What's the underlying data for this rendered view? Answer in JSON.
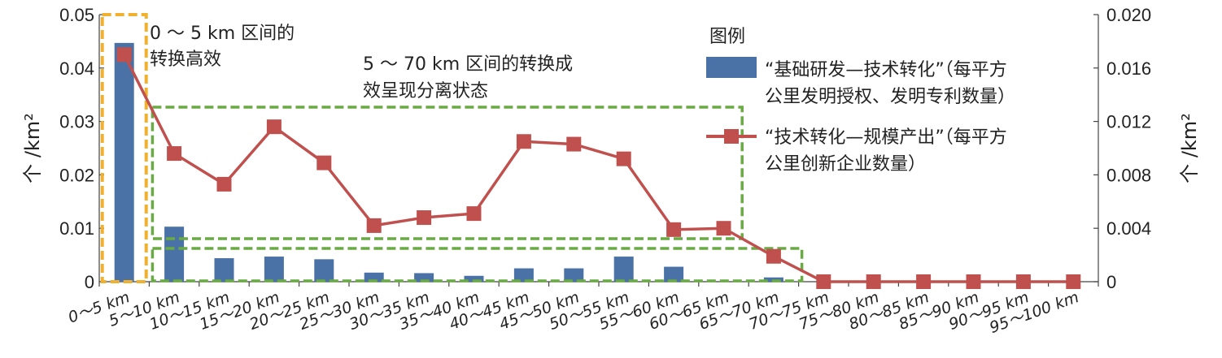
{
  "chart_data": {
    "type": "bar+line",
    "categories": [
      "0～5 km",
      "5～10 km",
      "10～15 km",
      "15～20 km",
      "20～25 km",
      "25～30 km",
      "30～35 km",
      "35～40 km",
      "40～45 km",
      "45～50 km",
      "50～55 km",
      "55～60 km",
      "60～65 km",
      "65～70 km",
      "70～75 km",
      "75～80 km",
      "80～85 km",
      "85～90 km",
      "90～95 km",
      "95～100 km"
    ],
    "series": [
      {
        "name": "“基础研发—技术转化”（每平方公里发明授权、发明专利数量）",
        "name_line1": "“基础研发—技术转化”（每平方",
        "name_line2": "公里发明授权、发明专利数量）",
        "type": "bar",
        "axis": "left",
        "color": "#4a72a6",
        "values": [
          0.0447,
          0.0103,
          0.0044,
          0.0047,
          0.0042,
          0.0017,
          0.0016,
          0.0011,
          0.0025,
          0.0025,
          0.0047,
          0.0028,
          0.0,
          0.0008,
          0.0,
          0.0,
          0.0,
          0.0,
          0.0,
          0.0
        ]
      },
      {
        "name": "“技术转化—规模产出”（每平方公里创新企业数量）",
        "name_line1": "“技术转化—规模产出”（每平方",
        "name_line2": "公里创新企业数量）",
        "type": "line",
        "axis": "right",
        "color": "#c0504d",
        "values": [
          0.017,
          0.0096,
          0.0073,
          0.0116,
          0.0089,
          0.0042,
          0.0048,
          0.0051,
          0.0105,
          0.0103,
          0.0092,
          0.0039,
          0.004,
          0.0019,
          0.0,
          0.0,
          0.0,
          0.0,
          0.0,
          0.0
        ]
      }
    ],
    "y_left": {
      "ylim": [
        0,
        0.05
      ],
      "ticks": [
        "0",
        "0.01",
        "0.02",
        "0.03",
        "0.04",
        "0.05"
      ],
      "label": "个 /km²"
    },
    "y_right": {
      "ylim": [
        0,
        0.02
      ],
      "ticks": [
        "0",
        "0.004",
        "0.008",
        "0.012",
        "0.016",
        "0.020"
      ],
      "label": "个 /km²"
    },
    "legend": {
      "title": "图例",
      "placement": "top-right"
    },
    "annotations": [
      {
        "line1": "0 ～ 5 km 区间的",
        "line2": "转换高效",
        "color": "#f0b030"
      },
      {
        "line1": "5 ～ 70 km 区间的转换成",
        "line2": "效呈现分离状态",
        "color": "#6aaa45"
      }
    ],
    "grid": false
  }
}
